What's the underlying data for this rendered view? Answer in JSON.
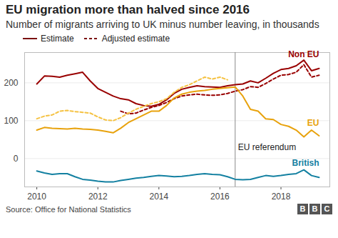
{
  "chart_data": {
    "type": "line",
    "title": "EU migration more than halved since 2016",
    "subtitle": "Number of migrants arriving to UK minus number leaving, in thousands",
    "source": "Source: Office for National Statistics",
    "logo": "BBC",
    "legend": "top-left",
    "legend_labels": [
      {
        "line_style": "solid",
        "label": "Estimate"
      },
      {
        "line_style": "dashed",
        "label": "Adjusted estimate"
      }
    ],
    "grid": true,
    "xlim": [
      2009.6,
      2019.6
    ],
    "xticks": [
      2010,
      2012,
      2014,
      2016,
      2018
    ],
    "ylim": [
      -75,
      280
    ],
    "yticks": [
      0,
      100,
      200
    ],
    "annotations": [
      {
        "text": "EU referendum",
        "x": 2016.5
      }
    ],
    "series": [
      {
        "name": "Non EU",
        "color": "#990000",
        "line_style": "solid",
        "x": [
          2010,
          2010.25,
          2010.5,
          2010.75,
          2011,
          2011.25,
          2011.5,
          2011.75,
          2012,
          2012.25,
          2012.5,
          2012.75,
          2013,
          2013.25,
          2013.5,
          2013.75,
          2014,
          2014.25,
          2014.5,
          2014.75,
          2015,
          2015.25,
          2015.5,
          2015.75,
          2016,
          2016.25,
          2016.5,
          2016.75,
          2017,
          2017.25,
          2017.5,
          2017.75,
          2018,
          2018.25,
          2018.5,
          2018.75,
          2019,
          2019.25
        ],
        "values": [
          197,
          218,
          217,
          215,
          220,
          224,
          228,
          205,
          185,
          175,
          165,
          158,
          155,
          145,
          140,
          138,
          143,
          155,
          172,
          183,
          188,
          192,
          190,
          189,
          188,
          192,
          195,
          197,
          205,
          200,
          212,
          225,
          235,
          238,
          245,
          260,
          232,
          238
        ]
      },
      {
        "name": "Non EU",
        "color": "#990000",
        "line_style": "dashed",
        "x": [
          2012.75,
          2013,
          2013.25,
          2013.5,
          2013.75,
          2014,
          2014.25,
          2014.5,
          2014.75,
          2015,
          2015.25,
          2015.5,
          2015.75,
          2016,
          2016.25,
          2016.5,
          2016.75,
          2017,
          2017.25,
          2017.5,
          2017.75,
          2018,
          2018.25,
          2018.5,
          2018.75,
          2019,
          2019.25
        ],
        "values": [
          125,
          118,
          120,
          128,
          135,
          140,
          148,
          158,
          165,
          168,
          170,
          168,
          167,
          168,
          172,
          178,
          182,
          190,
          188,
          198,
          210,
          220,
          222,
          228,
          248,
          215,
          220
        ]
      },
      {
        "name": "EU",
        "color": "#e8a20c",
        "line_style": "solid",
        "x": [
          2010,
          2010.25,
          2010.5,
          2010.75,
          2011,
          2011.25,
          2011.5,
          2011.75,
          2012,
          2012.25,
          2012.5,
          2012.75,
          2013,
          2013.25,
          2013.5,
          2013.75,
          2014,
          2014.25,
          2014.5,
          2014.75,
          2015,
          2015.25,
          2015.5,
          2015.75,
          2016,
          2016.25,
          2016.5,
          2016.75,
          2017,
          2017.25,
          2017.5,
          2017.75,
          2018,
          2018.25,
          2018.5,
          2018.75,
          2019,
          2019.25
        ],
        "values": [
          75,
          82,
          80,
          79,
          78,
          80,
          78,
          77,
          75,
          72,
          68,
          80,
          95,
          105,
          115,
          125,
          125,
          140,
          160,
          170,
          175,
          178,
          180,
          183,
          185,
          187,
          189,
          165,
          130,
          125,
          105,
          103,
          90,
          85,
          75,
          57,
          75,
          60
        ]
      },
      {
        "name": "EU",
        "color": "#f5c242",
        "line_style": "dashed",
        "x": [
          2010,
          2010.25,
          2010.5,
          2010.75,
          2011,
          2011.25,
          2011.5,
          2011.75,
          2012,
          2012.25,
          2012.5,
          2012.75,
          2013,
          2013.25,
          2013.5,
          2013.75,
          2014,
          2014.25,
          2014.5,
          2014.75,
          2015,
          2015.25,
          2015.5,
          2015.75,
          2016,
          2016.25
        ],
        "values": [
          105,
          112,
          115,
          125,
          127,
          124,
          122,
          120,
          110,
          102,
          100,
          108,
          120,
          130,
          138,
          145,
          150,
          158,
          175,
          188,
          195,
          205,
          215,
          210,
          215,
          208
        ]
      },
      {
        "name": "British",
        "color": "#1380a1",
        "line_style": "solid",
        "x": [
          2010,
          2010.25,
          2010.5,
          2010.75,
          2011,
          2011.25,
          2011.5,
          2011.75,
          2012,
          2012.25,
          2012.5,
          2012.75,
          2013,
          2013.25,
          2013.5,
          2013.75,
          2014,
          2014.25,
          2014.5,
          2014.75,
          2015,
          2015.25,
          2015.5,
          2015.75,
          2016,
          2016.25,
          2016.5,
          2016.75,
          2017,
          2017.25,
          2017.5,
          2017.75,
          2018,
          2018.25,
          2018.5,
          2018.75,
          2019,
          2019.25
        ],
        "values": [
          -33,
          -38,
          -42,
          -40,
          -40,
          -48,
          -55,
          -57,
          -60,
          -62,
          -62,
          -58,
          -55,
          -52,
          -50,
          -47,
          -45,
          -46,
          -48,
          -47,
          -45,
          -42,
          -40,
          -42,
          -43,
          -48,
          -55,
          -56,
          -55,
          -50,
          -45,
          -47,
          -45,
          -42,
          -40,
          -30,
          -45,
          -50
        ]
      }
    ]
  }
}
